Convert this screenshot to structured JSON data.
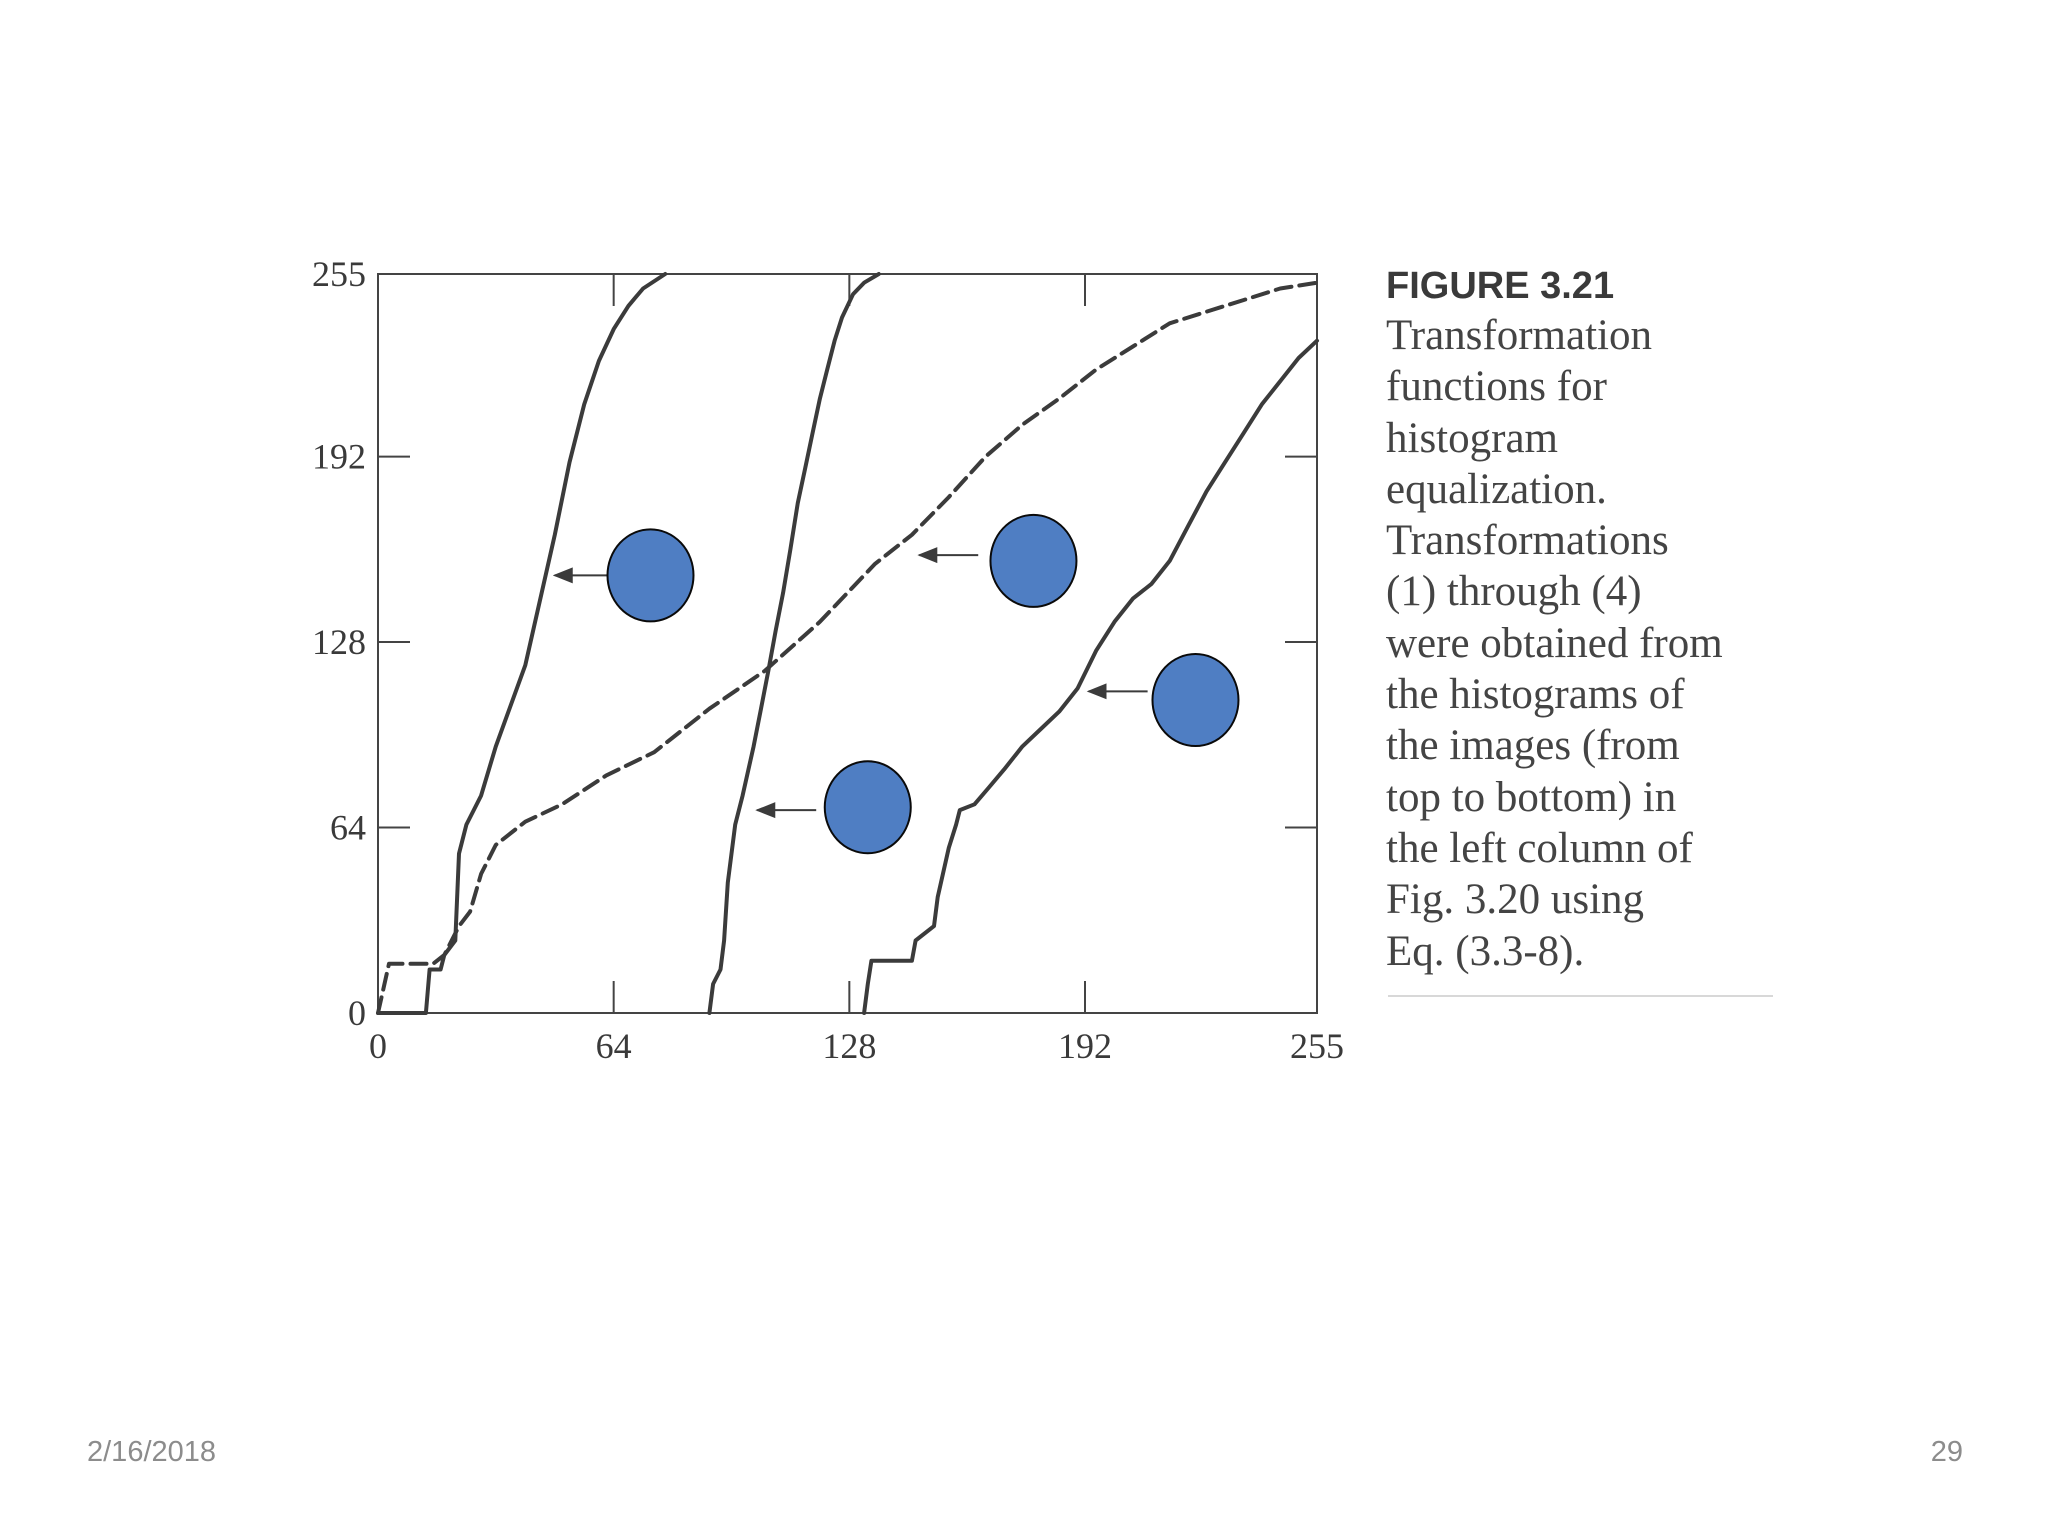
{
  "slide": {
    "date": "2/16/2018",
    "page_number": "29"
  },
  "caption": {
    "figure_label": "FIGURE 3.21",
    "text": "Transformation\nfunctions for\nhistogram\nequalization.\nTransformations\n(1) through (4)\nwere obtained from\nthe histograms of\nthe images (from\ntop to bottom) in\nthe left column of\nFig. 3.20 using\nEq. (3.3-8)."
  },
  "colors": {
    "curve": "#3b3b3b",
    "axis": "#444444",
    "marker_fill": "#4f7ec3",
    "marker_stroke": "#0a0a0a"
  },
  "chart_data": {
    "type": "line",
    "title": "",
    "xlabel": "",
    "ylabel": "",
    "xlim": [
      0,
      255
    ],
    "ylim": [
      0,
      255
    ],
    "x_ticks": [
      0,
      64,
      128,
      192,
      255
    ],
    "y_ticks": [
      0,
      64,
      128,
      192,
      255
    ],
    "grid": false,
    "series": [
      {
        "style": "solid",
        "x": [
          0,
          13,
          14,
          17,
          18,
          21,
          22,
          24,
          28,
          32,
          40,
          48,
          52,
          56,
          60,
          64,
          68,
          72,
          78
        ],
        "y": [
          0,
          0,
          15,
          15,
          20,
          25,
          55,
          65,
          75,
          92,
          120,
          165,
          190,
          210,
          225,
          236,
          244,
          250,
          255
        ]
      },
      {
        "style": "dashed",
        "x": [
          0,
          3,
          15,
          18,
          22,
          25,
          28,
          32,
          40,
          50,
          62,
          75,
          90,
          105,
          120,
          135,
          145,
          155,
          165,
          175,
          185,
          195,
          205,
          215,
          225,
          235,
          245,
          255
        ],
        "y": [
          0,
          17,
          17,
          20,
          30,
          35,
          48,
          58,
          66,
          72,
          82,
          90,
          105,
          118,
          135,
          155,
          165,
          178,
          192,
          203,
          212,
          222,
          230,
          238,
          242,
          246,
          250,
          252
        ]
      },
      {
        "style": "solid",
        "x": [
          90,
          91,
          93,
          94,
          95,
          97,
          99,
          102,
          104,
          106,
          108,
          110,
          112,
          114,
          116,
          118,
          120,
          122,
          124,
          126,
          129,
          132,
          136
        ],
        "y": [
          0,
          10,
          15,
          25,
          45,
          65,
          75,
          92,
          105,
          118,
          132,
          145,
          160,
          176,
          188,
          200,
          212,
          222,
          232,
          240,
          248,
          252,
          255
        ]
      },
      {
        "style": "solid",
        "x": [
          132,
          133,
          134,
          145,
          146,
          151,
          152,
          155,
          157,
          158,
          162,
          166,
          170,
          175,
          180,
          185,
          190,
          195,
          200,
          205,
          210,
          215,
          220,
          225,
          230,
          235,
          240,
          245,
          250,
          255
        ],
        "y": [
          0,
          10,
          18,
          18,
          25,
          30,
          40,
          57,
          65,
          70,
          72,
          78,
          84,
          92,
          98,
          104,
          112,
          125,
          135,
          143,
          148,
          156,
          168,
          180,
          190,
          200,
          210,
          218,
          226,
          232
        ]
      }
    ],
    "annotations": [
      {
        "marker": "circle",
        "cx": 74,
        "cy": 151,
        "arrow_tip_x": 48,
        "arrow_tip_y": 151,
        "arrow_tail_x": 63
      },
      {
        "marker": "circle",
        "cx": 178,
        "cy": 156,
        "arrow_tip_x": 147,
        "arrow_tip_y": 158,
        "arrow_tail_x": 163
      },
      {
        "marker": "circle",
        "cx": 133,
        "cy": 71,
        "arrow_tip_x": 103,
        "arrow_tip_y": 70,
        "arrow_tail_x": 119
      },
      {
        "marker": "circle",
        "cx": 222,
        "cy": 108,
        "arrow_tip_x": 193,
        "arrow_tip_y": 111,
        "arrow_tail_x": 209
      }
    ]
  }
}
